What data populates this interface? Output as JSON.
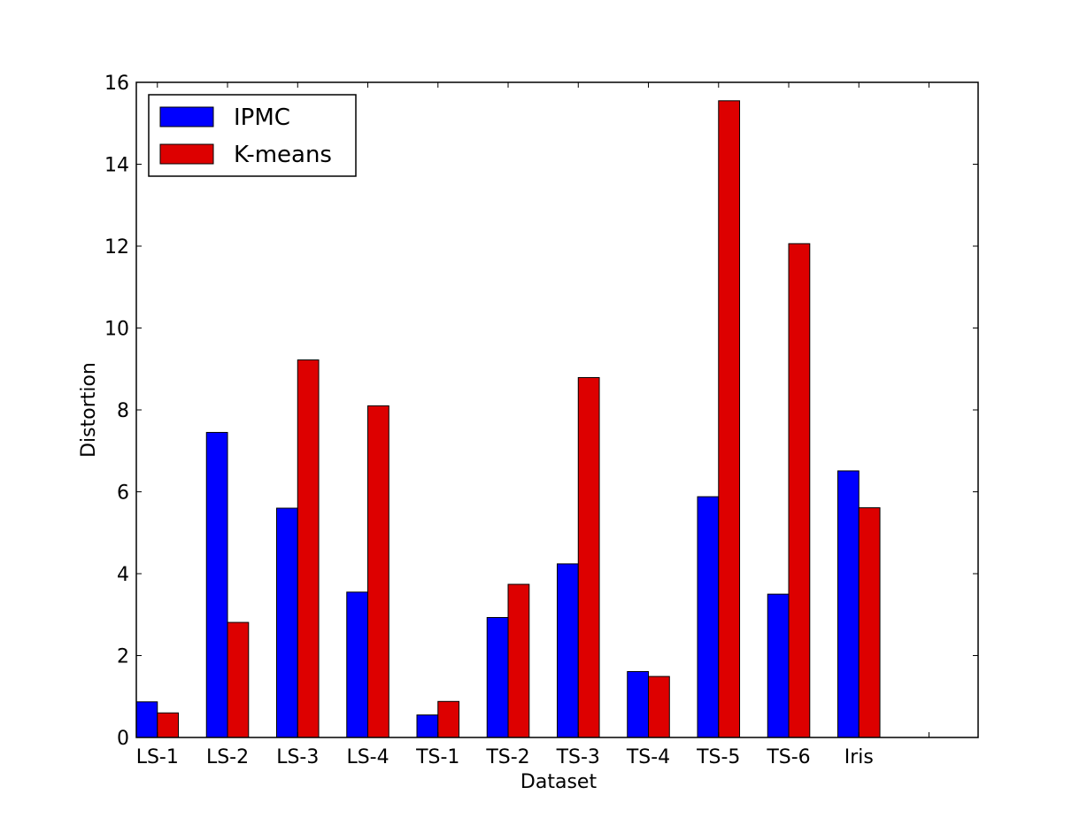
{
  "chart_data": {
    "type": "bar",
    "title": "",
    "xlabel": "Dataset",
    "ylabel": "Distortion",
    "ylim": [
      0,
      16
    ],
    "yticks": [
      "0",
      "2",
      "4",
      "6",
      "8",
      "10",
      "12",
      "14",
      "16"
    ],
    "categories": [
      "LS-1",
      "LS-2",
      "LS-3",
      "LS-4",
      "TS-1",
      "TS-2",
      "TS-3",
      "TS-4",
      "TS-5",
      "TS-6",
      "Iris"
    ],
    "series": [
      {
        "name": "IPMC",
        "color": "#0000ff",
        "values": [
          0.87,
          7.45,
          5.6,
          3.55,
          0.55,
          2.93,
          4.24,
          1.61,
          5.88,
          3.5,
          6.51
        ]
      },
      {
        "name": "K-means",
        "color": "#dd0000",
        "values": [
          0.6,
          2.81,
          9.22,
          8.1,
          0.88,
          3.74,
          8.79,
          1.49,
          15.55,
          12.06,
          5.61
        ]
      }
    ],
    "legend_position": "top-left",
    "grid": false
  }
}
